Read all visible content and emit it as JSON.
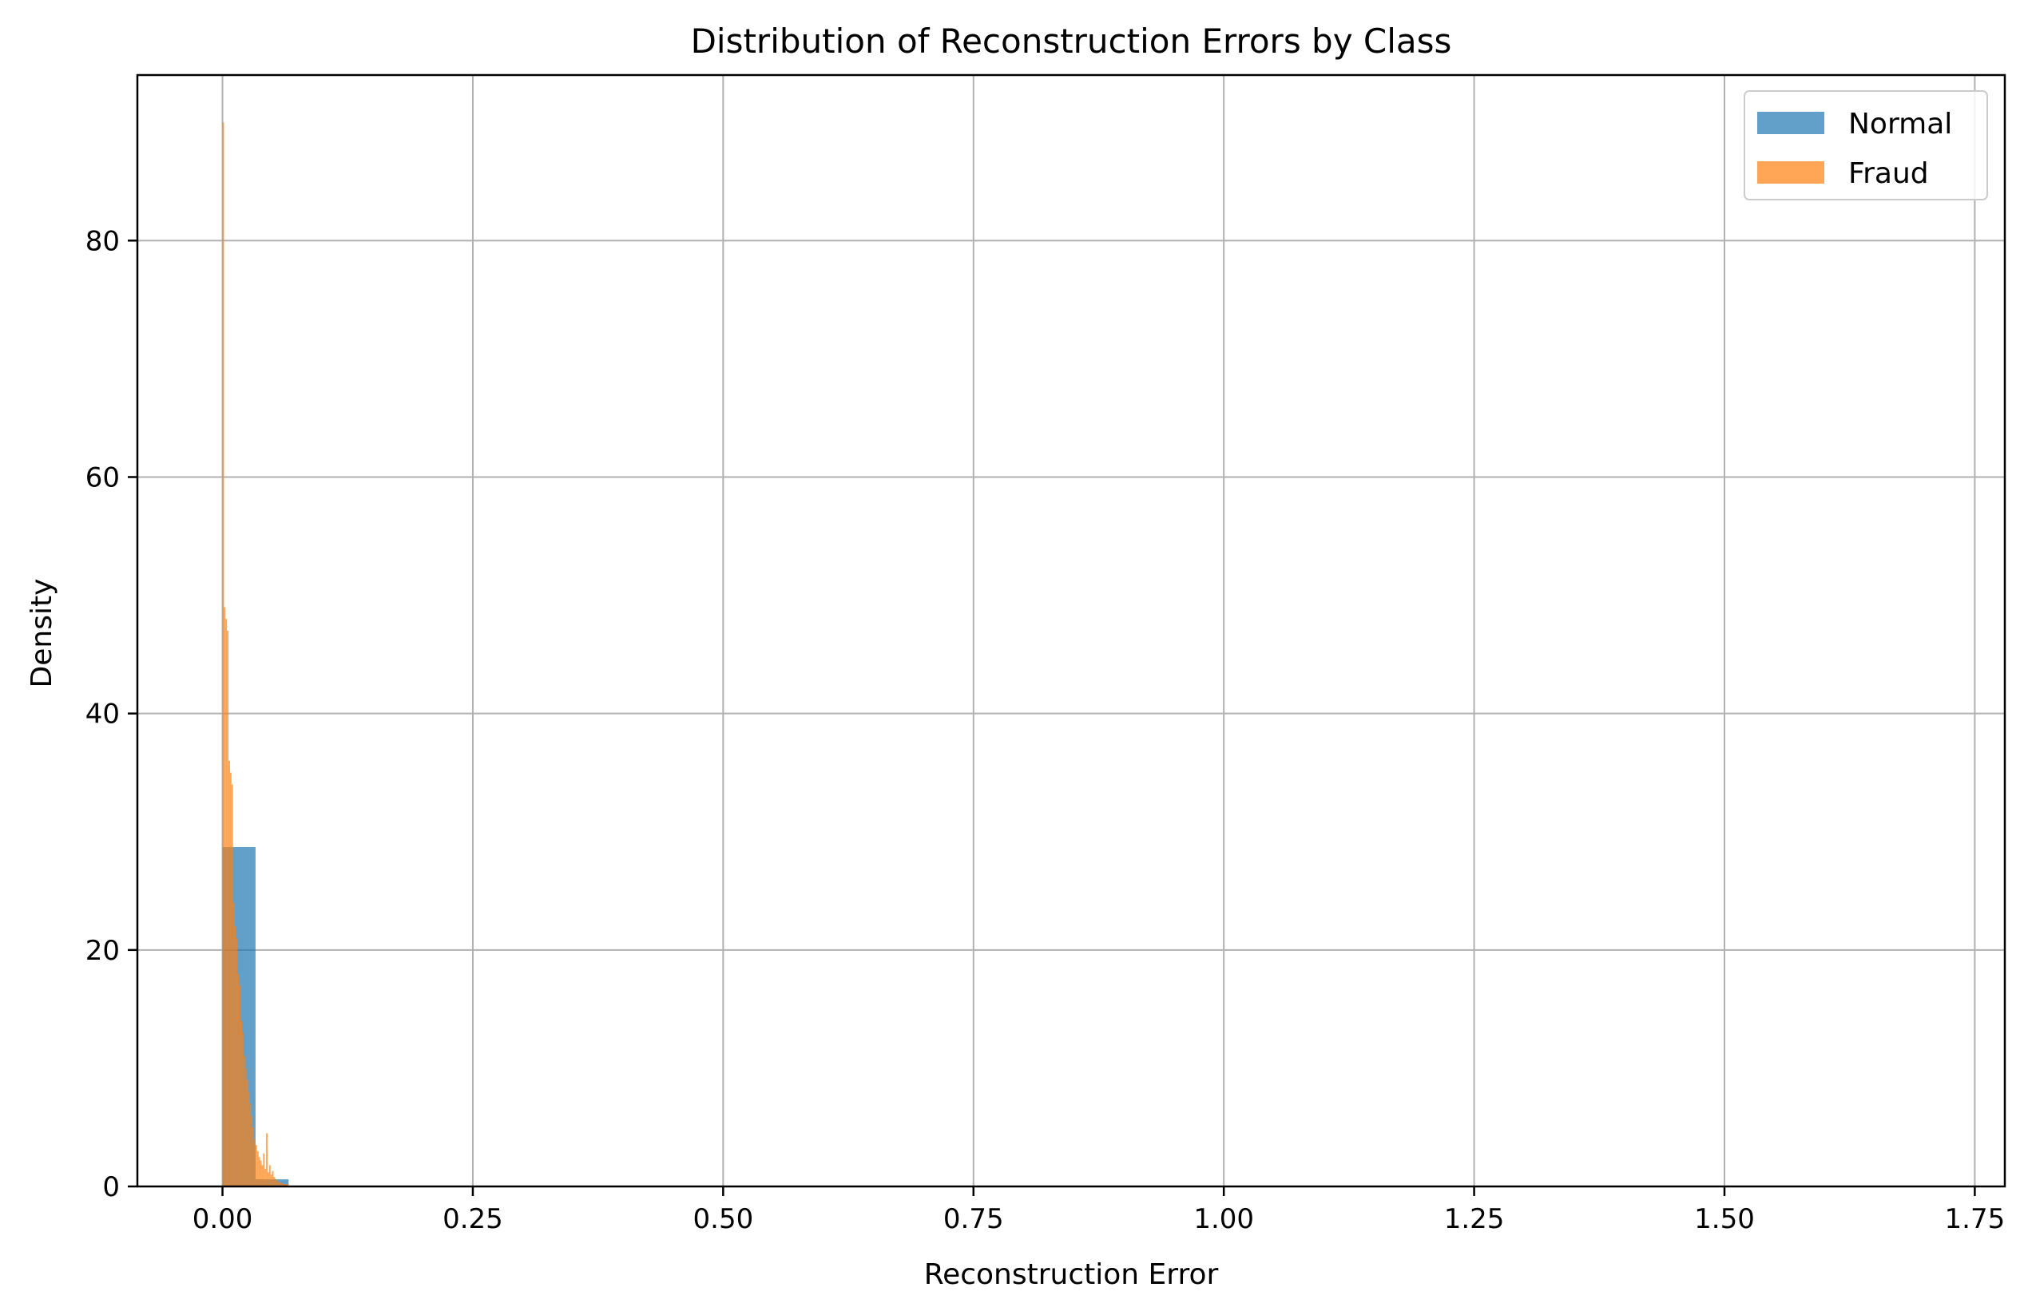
{
  "chart_data": {
    "type": "histogram",
    "title": "Distribution of Reconstruction Errors by Class",
    "xlabel": "Reconstruction Error",
    "ylabel": "Density",
    "xlim": [
      -0.085,
      1.78
    ],
    "ylim": [
      0,
      94
    ],
    "xticks": [
      0.0,
      0.25,
      0.5,
      0.75,
      1.0,
      1.25,
      1.5,
      1.75
    ],
    "xtick_labels": [
      "0.00",
      "0.25",
      "0.50",
      "0.75",
      "1.00",
      "1.25",
      "1.50",
      "1.75"
    ],
    "yticks": [
      0,
      20,
      40,
      60,
      80
    ],
    "ytick_labels": [
      "0",
      "20",
      "40",
      "60",
      "80"
    ],
    "grid": true,
    "legend_position": "top-right",
    "series": [
      {
        "name": "Normal",
        "color": "#1f77b4",
        "opacity": 0.7,
        "bins": [
          {
            "x0": 0.0,
            "x1": 0.033,
            "value": 28.7
          },
          {
            "x0": 0.033,
            "x1": 0.066,
            "value": 0.6
          },
          {
            "x0": 0.066,
            "x1": 0.099,
            "value": 0.05
          }
        ]
      },
      {
        "name": "Fraud",
        "color": "#ff7f0e",
        "opacity": 0.7,
        "bins": [
          {
            "x0": 0.0,
            "x1": 0.0015,
            "value": 90
          },
          {
            "x0": 0.0015,
            "x1": 0.003,
            "value": 49
          },
          {
            "x0": 0.003,
            "x1": 0.0045,
            "value": 48
          },
          {
            "x0": 0.0045,
            "x1": 0.006,
            "value": 47
          },
          {
            "x0": 0.006,
            "x1": 0.0075,
            "value": 36
          },
          {
            "x0": 0.0075,
            "x1": 0.009,
            "value": 35
          },
          {
            "x0": 0.009,
            "x1": 0.0105,
            "value": 34
          },
          {
            "x0": 0.0105,
            "x1": 0.012,
            "value": 24
          },
          {
            "x0": 0.012,
            "x1": 0.0135,
            "value": 22
          },
          {
            "x0": 0.0135,
            "x1": 0.015,
            "value": 21
          },
          {
            "x0": 0.015,
            "x1": 0.0165,
            "value": 18
          },
          {
            "x0": 0.0165,
            "x1": 0.018,
            "value": 17
          },
          {
            "x0": 0.018,
            "x1": 0.0195,
            "value": 14
          },
          {
            "x0": 0.0195,
            "x1": 0.021,
            "value": 13
          },
          {
            "x0": 0.021,
            "x1": 0.0225,
            "value": 11
          },
          {
            "x0": 0.0225,
            "x1": 0.024,
            "value": 10
          },
          {
            "x0": 0.024,
            "x1": 0.0255,
            "value": 9
          },
          {
            "x0": 0.0255,
            "x1": 0.027,
            "value": 8
          },
          {
            "x0": 0.027,
            "x1": 0.0285,
            "value": 7
          },
          {
            "x0": 0.0285,
            "x1": 0.03,
            "value": 6
          },
          {
            "x0": 0.03,
            "x1": 0.0315,
            "value": 5
          },
          {
            "x0": 0.0315,
            "x1": 0.033,
            "value": 4
          },
          {
            "x0": 0.033,
            "x1": 0.0345,
            "value": 3.5
          },
          {
            "x0": 0.0345,
            "x1": 0.036,
            "value": 3
          },
          {
            "x0": 0.036,
            "x1": 0.0375,
            "value": 2.5
          },
          {
            "x0": 0.0375,
            "x1": 0.039,
            "value": 2.2
          },
          {
            "x0": 0.039,
            "x1": 0.0405,
            "value": 1.8
          },
          {
            "x0": 0.0405,
            "x1": 0.042,
            "value": 2.8
          },
          {
            "x0": 0.042,
            "x1": 0.0435,
            "value": 1.5
          },
          {
            "x0": 0.0435,
            "x1": 0.045,
            "value": 4.5
          },
          {
            "x0": 0.045,
            "x1": 0.0465,
            "value": 1.2
          },
          {
            "x0": 0.0465,
            "x1": 0.048,
            "value": 1.8
          },
          {
            "x0": 0.048,
            "x1": 0.0495,
            "value": 1.0
          },
          {
            "x0": 0.0495,
            "x1": 0.051,
            "value": 1.3
          },
          {
            "x0": 0.051,
            "x1": 0.0525,
            "value": 0.8
          },
          {
            "x0": 0.0525,
            "x1": 0.054,
            "value": 0.6
          },
          {
            "x0": 0.054,
            "x1": 0.0555,
            "value": 0.5
          },
          {
            "x0": 0.0555,
            "x1": 0.057,
            "value": 0.4
          },
          {
            "x0": 0.057,
            "x1": 0.06,
            "value": 0.3
          },
          {
            "x0": 0.06,
            "x1": 0.066,
            "value": 0.2
          }
        ]
      }
    ]
  }
}
